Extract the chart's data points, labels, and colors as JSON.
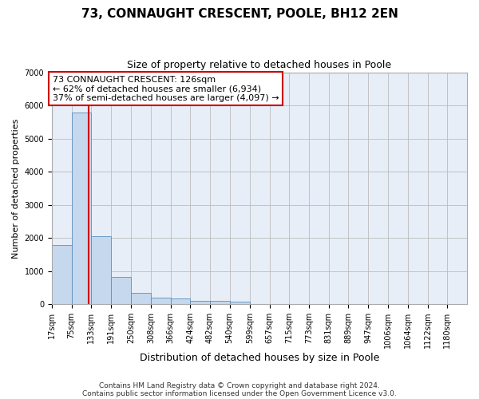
{
  "title": "73, CONNAUGHT CRESCENT, POOLE, BH12 2EN",
  "subtitle": "Size of property relative to detached houses in Poole",
  "xlabel": "Distribution of detached houses by size in Poole",
  "ylabel": "Number of detached properties",
  "footnote1": "Contains HM Land Registry data © Crown copyright and database right 2024.",
  "footnote2": "Contains public sector information licensed under the Open Government Licence v3.0.",
  "annotation_line1": "73 CONNAUGHT CRESCENT: 126sqm",
  "annotation_line2": "← 62% of detached houses are smaller (6,934)",
  "annotation_line3": "37% of semi-detached houses are larger (4,097) →",
  "property_size": 126,
  "bar_color": "#c5d8ee",
  "bar_edge_color": "#5a8fc0",
  "vline_color": "#cc0000",
  "annotation_box_edgecolor": "#cc0000",
  "background_color": "#e8eef8",
  "bins": [
    17,
    75,
    133,
    191,
    250,
    308,
    366,
    424,
    482,
    540,
    599,
    657,
    715,
    773,
    831,
    889,
    947,
    1006,
    1064,
    1122,
    1180
  ],
  "bin_labels": [
    "17sqm",
    "75sqm",
    "133sqm",
    "191sqm",
    "250sqm",
    "308sqm",
    "366sqm",
    "424sqm",
    "482sqm",
    "540sqm",
    "599sqm",
    "657sqm",
    "715sqm",
    "773sqm",
    "831sqm",
    "889sqm",
    "947sqm",
    "1006sqm",
    "1064sqm",
    "1122sqm",
    "1180sqm"
  ],
  "bar_heights": [
    1780,
    5780,
    2050,
    830,
    350,
    195,
    170,
    110,
    105,
    70,
    0,
    0,
    0,
    0,
    0,
    0,
    0,
    0,
    0,
    0
  ],
  "ylim": [
    0,
    7000
  ],
  "yticks": [
    0,
    1000,
    2000,
    3000,
    4000,
    5000,
    6000,
    7000
  ],
  "annotation_fontsize": 8,
  "title_fontsize": 11,
  "subtitle_fontsize": 9,
  "ylabel_fontsize": 8,
  "xlabel_fontsize": 9,
  "tick_fontsize": 7,
  "footnote_fontsize": 6.5
}
